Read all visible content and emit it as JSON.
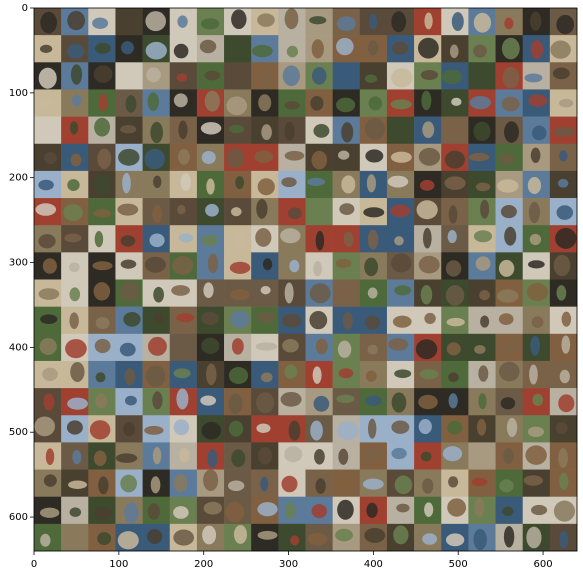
{
  "chart_data": {
    "type": "image",
    "xlim": [
      0,
      640
    ],
    "ylim": [
      640,
      0
    ],
    "xticks": [
      0,
      100,
      200,
      300,
      400,
      500,
      600
    ],
    "yticks": [
      0,
      100,
      200,
      300,
      400,
      500,
      600
    ]
  }
}
